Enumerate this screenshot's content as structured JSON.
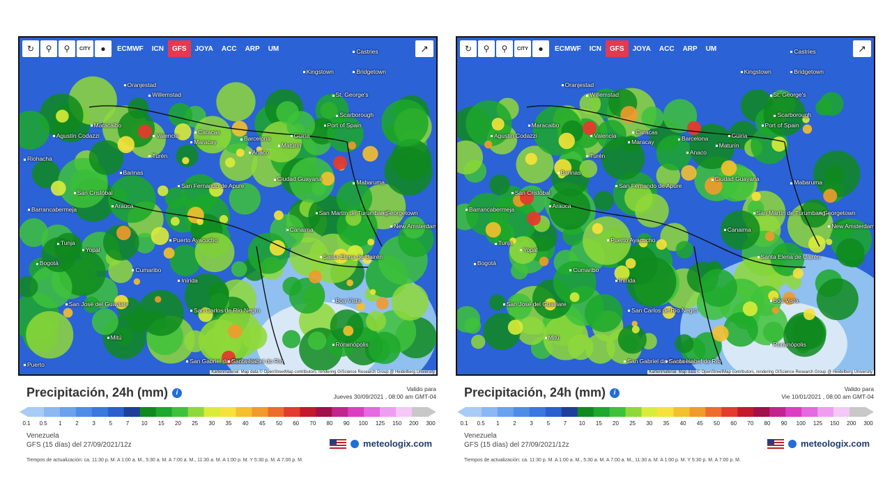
{
  "toolbar": {
    "models": [
      "ECMWF",
      "ICN",
      "GFS",
      "JOYA",
      "ACC",
      "ARP",
      "UM"
    ],
    "active_model": "GFS",
    "city_label_top": "CITY",
    "city_label_bottom": "CITY"
  },
  "attribution": "Kartenmaterial: Map data © OpenStreetMap contributors, rendering GIScience Research Group @ Heidelberg University",
  "legend": {
    "title": "Precipitación, 24h (mm)",
    "valid_label": "Valido para",
    "scale_values": [
      "0.1",
      "0.5",
      "1",
      "2",
      "3",
      "5",
      "7",
      "10",
      "15",
      "20",
      "25",
      "30",
      "35",
      "40",
      "45",
      "50",
      "60",
      "70",
      "80",
      "90",
      "100",
      "125",
      "150",
      "200",
      "300"
    ],
    "scale_colors": [
      "#a8ccf5",
      "#8ab8f2",
      "#6aa2ee",
      "#4f8ce8",
      "#3a78e0",
      "#2a5fcf",
      "#1d3f9a",
      "#0f8a1f",
      "#1ca82a",
      "#3fc23b",
      "#8fd83a",
      "#d9ec3a",
      "#f6e23a",
      "#f5c02e",
      "#f19a2c",
      "#ec6c2c",
      "#e33b2c",
      "#c4192c",
      "#a0104a",
      "#c2248e",
      "#db3ec3",
      "#e36ae0",
      "#ee9ef0",
      "#f5c8f7",
      "#c8c8c8"
    ]
  },
  "brand": {
    "name": "meteologix.com"
  },
  "panels": [
    {
      "valid_date": "Jueves 30/09/2021 ,  08:00 am  GMT-04",
      "region": "Venezuela",
      "model_run": "GFS  (15 días)  del 27/09/2021/12z",
      "update_times": "Tiempos de actualización: ca. 11:30 p. M. A 1:00 a. M., 5:30 a. M. A 7:00 a. M., 11:30 a. M. A 1:00 p. M. Y 5:30 p. M. A 7:00 p. M.",
      "places": [
        "Castries",
        "Kingstown",
        "Bridgetown",
        "Oranjestad",
        "Willemstad",
        "St. George's",
        "Scarborough",
        "Port of Spain",
        "Maracaibo",
        "Valencia",
        "Caracas",
        "Maracay",
        "Barcelona",
        "Güiria",
        "Maturín",
        "Anaco",
        "Turén",
        "Barinas",
        "San Fernando de Apure",
        "Ciudad Guayana",
        "Mabaruma",
        "San Cristóbal",
        "Barrancabermeja",
        "Arauca",
        "Georgetown",
        "New Amsterdam",
        "San Martín de Turumbang",
        "Canaima",
        "Tunja",
        "Yopal",
        "Puerto Ayacucho",
        "Santa Elena de Uairén",
        "Bogotá",
        "Cumaribo",
        "Inírida",
        "Boa Vista",
        "San José del Guaviare",
        "San Carlos de Río Negro",
        "Mitú",
        "Rorainópolis",
        "San Gabriel da Cachoeira",
        "Santa Isabel do Rio",
        "Puerto",
        "Agustín Codazzi",
        "Riohacha"
      ]
    },
    {
      "valid_date": "Vie 10/01/2021 ,  08:00 am  GMT-04",
      "region": "Venezuela",
      "model_run": "GFS  (15 días)  del 27/09/2021/12z",
      "update_times": "Tiempos de actualización: ca. 11:30 p. M. A 1:00 a. M., 5:30 a. M. A 7:00 a. M., 11:30 a. M. A 1:00 p. M. Y 5:30 p. M. A 7:00 p. M.",
      "places": [
        "Castries",
        "Kingstown",
        "Bridgetown",
        "Oranjestad",
        "Willemstad",
        "St. George's",
        "Scarborough",
        "Port of Spain",
        "Maracaibo",
        "Valencia",
        "Caracas",
        "Maracay",
        "Barcelona",
        "Güiria",
        "Maturín",
        "Anaco",
        "Turén",
        "Barinas",
        "San Fernando de Apure",
        "Ciudad Guayana",
        "Mabaruma",
        "San Cristóbal",
        "Barrancabermeja",
        "Arauca",
        "Georgetown",
        "New Amsterdam",
        "San Martín de Turumbang",
        "Canaima",
        "Tunja",
        "Yopal",
        "Puerto Ayacucho",
        "Santa Elena de Uairén",
        "Bogotá",
        "Cumaribo",
        "Inírida",
        "Boa Vista",
        "San José del Guaviare",
        "San Carlos de Río Negro",
        "Mitú",
        "Rorainópolis",
        "San Gabriel da Cachoeira",
        "Santa Isabel do Rio",
        "Agustín Codazzi"
      ]
    }
  ]
}
